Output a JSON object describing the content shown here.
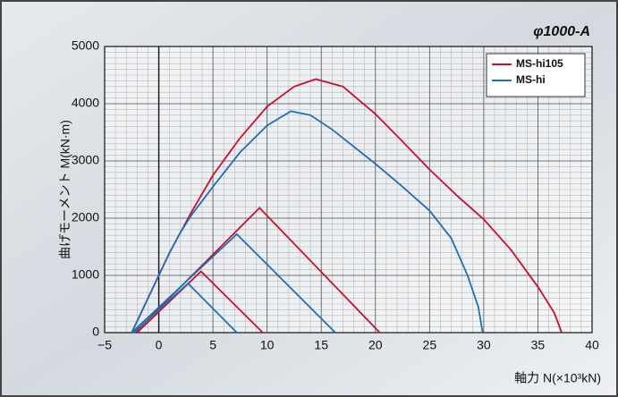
{
  "chart_data": {
    "type": "line",
    "title": "φ1000-A",
    "x_label": "軸力 N(×10³kN)",
    "y_label": "曲げモーメント M(kN·m)",
    "xlim": [
      -5,
      40
    ],
    "xticks": [
      {
        "value": -5,
        "label": "−5"
      },
      0,
      5,
      10,
      15,
      20,
      25,
      30,
      35,
      40
    ],
    "ylim": [
      0,
      5000
    ],
    "yticks": [
      0,
      1000,
      2000,
      3000,
      4000,
      5000
    ],
    "grid": true,
    "x_minor_step": 1,
    "y_minor_step": 100,
    "legend": "upper right",
    "series": [
      {
        "name": "MS-hi105",
        "color": "#c8102e",
        "curves": [
          {
            "x": [
              -2.5,
              -1,
              0,
              1,
              2,
              3,
              5,
              7.5,
              10,
              12.5,
              14.5,
              17,
              20,
              22.5,
              25,
              27.5,
              30,
              32.5,
              35,
              36.5,
              37.2
            ],
            "values": [
              0,
              600,
              1000,
              1400,
              1750,
              2100,
              2750,
              3400,
              3950,
              4300,
              4430,
              4300,
              3820,
              3340,
              2850,
              2400,
              1980,
              1450,
              800,
              350,
              0
            ]
          },
          {
            "x": [
              -2.2,
              9.3,
              20.4
            ],
            "values": [
              0,
              2180,
              0
            ]
          },
          {
            "x": [
              -2,
              3.9,
              9.6
            ],
            "values": [
              0,
              1070,
              0
            ]
          }
        ]
      },
      {
        "name": "MS-hi",
        "color": "#1f6fb5",
        "curves": [
          {
            "x": [
              -2.5,
              -1,
              0,
              1,
              2,
              3,
              5,
              7.5,
              10,
              12.2,
              14,
              16,
              18,
              20,
              22.5,
              25,
              27,
              28.5,
              29.5,
              29.9
            ],
            "values": [
              0,
              600,
              1000,
              1400,
              1750,
              2050,
              2550,
              3150,
              3620,
              3870,
              3800,
              3550,
              3250,
              2950,
              2550,
              2130,
              1650,
              1000,
              450,
              0
            ]
          },
          {
            "x": [
              -2.5,
              7.2,
              16.3
            ],
            "values": [
              0,
              1720,
              0
            ]
          },
          {
            "x": [
              -2.3,
              2.7,
              7.2
            ],
            "values": [
              0,
              860,
              0
            ]
          }
        ]
      }
    ]
  }
}
